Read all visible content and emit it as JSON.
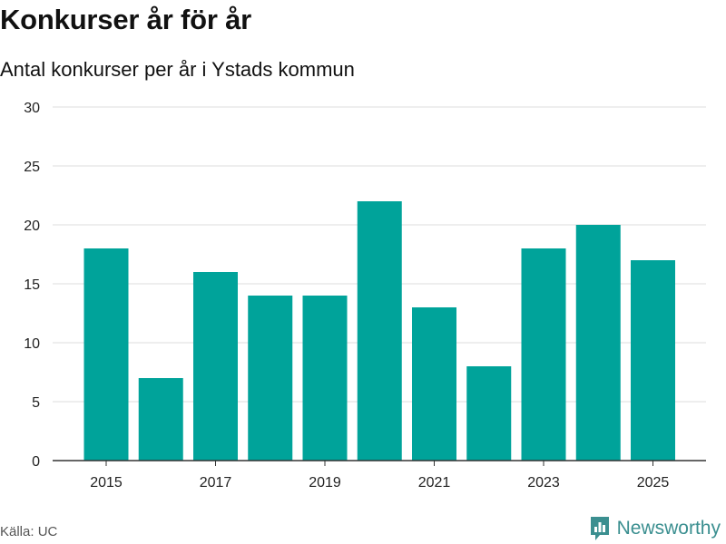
{
  "header": {
    "title": "Konkurser år för år",
    "subtitle": "Antal konkurser per år i Ystads kommun"
  },
  "footer": {
    "source": "Källa: UC",
    "brand": "Newsworthy"
  },
  "colors": {
    "bar": "#00a39a",
    "grid": "#dddddd",
    "axis": "#333333",
    "text": "#222222",
    "brand": "#3b8f90"
  },
  "chart_data": {
    "type": "bar",
    "title": "Konkurser år för år",
    "subtitle": "Antal konkurser per år i Ystads kommun",
    "xlabel": "",
    "ylabel": "",
    "categories": [
      "2015",
      "2016",
      "2017",
      "2018",
      "2019",
      "2020",
      "2021",
      "2022",
      "2023",
      "2024",
      "2025"
    ],
    "values": [
      18,
      7,
      16,
      14,
      14,
      22,
      13,
      8,
      18,
      20,
      17
    ],
    "xtick_labels": [
      "2015",
      "2017",
      "2019",
      "2021",
      "2023",
      "2025"
    ],
    "ylim": [
      0,
      30
    ],
    "yticks": [
      0,
      5,
      10,
      15,
      20,
      25,
      30
    ],
    "grid": true,
    "legend": "none"
  }
}
